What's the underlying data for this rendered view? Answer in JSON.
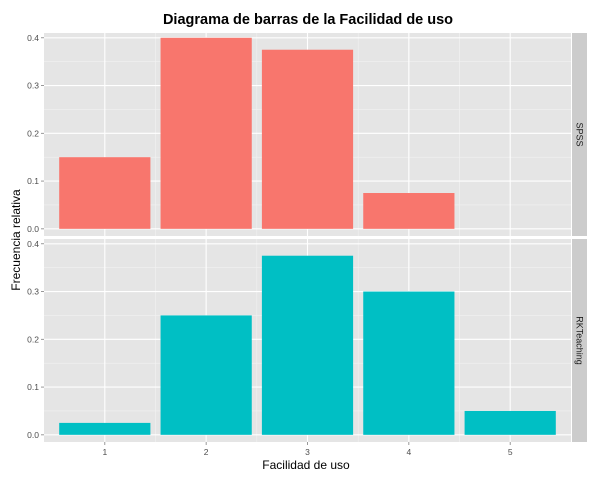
{
  "chart_data": {
    "type": "bar",
    "title": "Diagrama de barras de la Facilidad de uso",
    "xlabel": "Facilidad de uso",
    "ylabel": "Frecuencia relativa",
    "categories": [
      "1",
      "2",
      "3",
      "4",
      "5"
    ],
    "x_ticks": [
      "1",
      "2",
      "3",
      "4",
      "5"
    ],
    "y_ticks": [
      "0.0",
      "0.1",
      "0.2",
      "0.3",
      "0.4"
    ],
    "ylim": [
      -0.015,
      0.41
    ],
    "grid": true,
    "facets": [
      {
        "strip": "SPSS",
        "color": "#F8766D",
        "values": [
          0.15,
          0.4,
          0.375,
          0.075,
          0
        ]
      },
      {
        "strip": "RKTeaching",
        "color": "#00BFC4",
        "values": [
          0.025,
          0.25,
          0.375,
          0.3,
          0.05
        ]
      }
    ]
  }
}
